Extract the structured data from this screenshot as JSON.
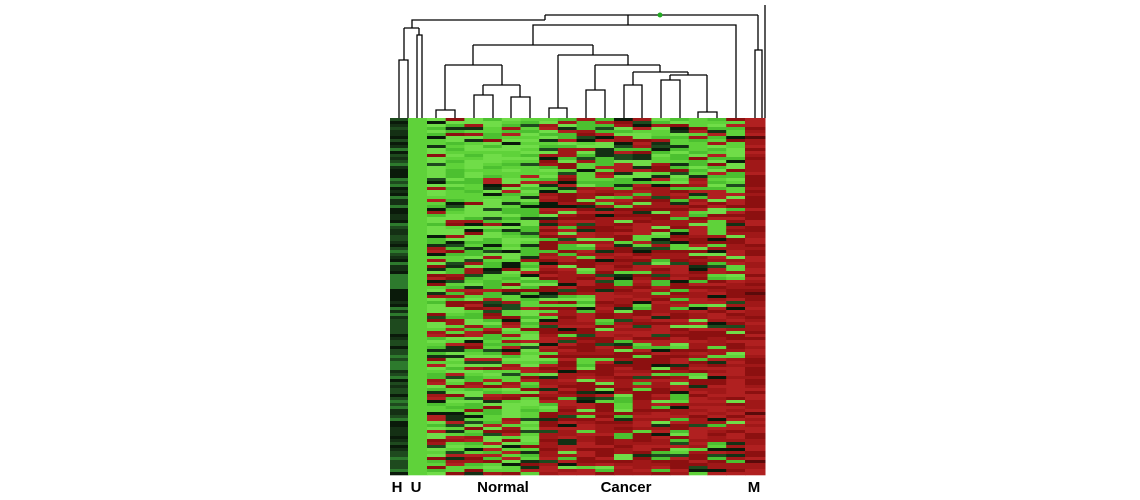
{
  "labels": {
    "h": "H",
    "u": "U",
    "normal": "Normal",
    "cancer": "Cancer",
    "m": "M"
  }
}
